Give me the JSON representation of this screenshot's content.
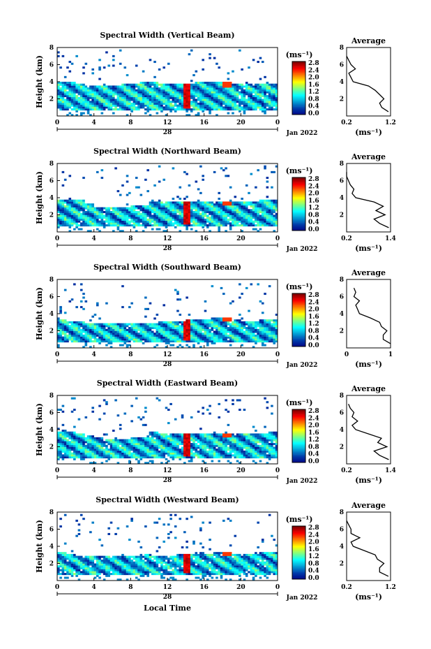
{
  "figure": {
    "date_label": "Jan 2022",
    "x_axis_label": "Local Time",
    "x_ticks": [
      "0",
      "4",
      "8",
      "12",
      "16",
      "20",
      "0"
    ],
    "day_label": "28",
    "colorbar_unit": "(ms⁻¹)",
    "colorbar_ticks": [
      "0.0",
      "0.4",
      "0.8",
      "1.2",
      "1.6",
      "2.0",
      "2.4",
      "2.8"
    ],
    "avg_title": "Average",
    "avg_unit": "(ms⁻¹)",
    "y_label": "Height (km)",
    "y_ticks": [
      "2",
      "4",
      "6",
      "8"
    ]
  },
  "chart_data": [
    {
      "type": "heatmap",
      "title": "Spectral Width (Vertical Beam)",
      "xlabel": "",
      "ylabel": "Height (km)",
      "xlim": [
        0,
        24
      ],
      "ylim": [
        0,
        8
      ],
      "colorbar_range": [
        0.0,
        2.8
      ],
      "layer_top_km": [
        4.0,
        4.0,
        3.8,
        3.6,
        3.5,
        3.5,
        3.6,
        3.7,
        3.8,
        3.9,
        4.0,
        3.8,
        3.8,
        3.8,
        3.8,
        3.9,
        3.9,
        3.9,
        3.9,
        3.8,
        3.8,
        3.8,
        3.8,
        3.8,
        3.8
      ],
      "average_profile": {
        "xlim": [
          0.2,
          1.2
        ],
        "xticks": [
          "0.2",
          "1.2"
        ],
        "ylim": [
          0,
          8
        ],
        "height_km": [
          0.5,
          1.0,
          1.5,
          2.0,
          2.5,
          3.0,
          3.5,
          4.0,
          4.5,
          5.0,
          5.5,
          6.0,
          6.5,
          7.0
        ],
        "width": [
          1.15,
          1.0,
          0.95,
          1.05,
          0.95,
          0.85,
          0.7,
          0.35,
          0.3,
          0.25,
          0.4,
          0.3,
          0.25,
          0.2
        ]
      }
    },
    {
      "type": "heatmap",
      "title": "Spectral Width (Northward Beam)",
      "xlabel": "",
      "ylabel": "Height (km)",
      "xlim": [
        0,
        24
      ],
      "ylim": [
        0,
        8
      ],
      "colorbar_range": [
        0.0,
        2.8
      ],
      "layer_top_km": [
        3.7,
        3.8,
        3.7,
        3.3,
        3.0,
        2.8,
        2.8,
        3.0,
        3.1,
        3.1,
        3.6,
        3.6,
        3.6,
        3.6,
        3.6,
        3.6,
        3.6,
        3.6,
        3.6,
        3.6,
        3.6,
        3.6,
        3.7,
        3.7,
        3.7
      ],
      "average_profile": {
        "xlim": [
          0.2,
          1.4
        ],
        "xticks": [
          "0.2",
          "1.4"
        ],
        "ylim": [
          0,
          8
        ],
        "height_km": [
          0.5,
          1.0,
          1.5,
          2.0,
          2.5,
          3.0,
          3.5,
          4.0,
          4.5,
          5.0,
          5.5,
          6.0,
          6.5,
          7.0
        ],
        "width": [
          1.35,
          1.1,
          0.95,
          1.25,
          1.0,
          1.2,
          0.95,
          0.45,
          0.35,
          0.4,
          0.3,
          0.25,
          0.2,
          0.2
        ]
      }
    },
    {
      "type": "heatmap",
      "title": "Spectral Width (Southward Beam)",
      "xlabel": "",
      "ylabel": "Height (km)",
      "xlim": [
        0,
        24
      ],
      "ylim": [
        0,
        8
      ],
      "colorbar_range": [
        0.0,
        2.8
      ],
      "layer_top_km": [
        3.3,
        3.2,
        3.1,
        3.0,
        2.9,
        2.8,
        2.8,
        2.8,
        2.9,
        2.9,
        3.0,
        3.1,
        3.1,
        3.2,
        3.3,
        3.3,
        3.4,
        3.5,
        3.5,
        3.3,
        3.2,
        3.2,
        3.3,
        3.3,
        3.3
      ],
      "average_profile": {
        "xlim": [
          0,
          1.2
        ],
        "xticks": [
          "0",
          "1"
        ],
        "ylim": [
          0,
          8
        ],
        "height_km": [
          0.5,
          1.0,
          1.5,
          2.0,
          2.5,
          3.0,
          3.5,
          4.0,
          4.5,
          5.0,
          5.5,
          6.0,
          6.5,
          7.0
        ],
        "width": [
          1.2,
          1.0,
          1.0,
          1.1,
          0.95,
          0.9,
          0.65,
          0.35,
          0.3,
          0.25,
          0.35,
          0.2,
          0.25,
          0.2
        ]
      }
    },
    {
      "type": "heatmap",
      "title": "Spectral Width (Eastward Beam)",
      "xlabel": "",
      "ylabel": "Height (km)",
      "xlim": [
        0,
        24
      ],
      "ylim": [
        0,
        8
      ],
      "colorbar_range": [
        0.0,
        2.8
      ],
      "layer_top_km": [
        3.7,
        3.7,
        3.5,
        3.3,
        3.1,
        3.0,
        3.0,
        3.0,
        3.1,
        3.1,
        3.7,
        3.6,
        3.6,
        3.6,
        3.6,
        3.6,
        3.6,
        3.6,
        3.6,
        3.6,
        3.6,
        3.6,
        3.6,
        3.7,
        3.7
      ],
      "average_profile": {
        "xlim": [
          0.2,
          1.4
        ],
        "xticks": [
          "0.2",
          "1.4"
        ],
        "ylim": [
          0,
          8
        ],
        "height_km": [
          0.5,
          1.0,
          1.5,
          2.0,
          2.5,
          3.0,
          3.5,
          4.0,
          4.5,
          5.0,
          5.5,
          6.0,
          6.5,
          7.0
        ],
        "width": [
          1.35,
          1.1,
          0.95,
          1.3,
          1.05,
          1.15,
          0.8,
          0.45,
          0.35,
          0.5,
          0.35,
          0.4,
          0.3,
          0.25
        ]
      }
    },
    {
      "type": "heatmap",
      "title": "Spectral Width (Westward Beam)",
      "xlabel": "Local Time",
      "ylabel": "Height (km)",
      "xlim": [
        0,
        24
      ],
      "ylim": [
        0,
        8
      ],
      "colorbar_range": [
        0.0,
        2.8
      ],
      "layer_top_km": [
        3.3,
        3.2,
        3.0,
        2.9,
        2.9,
        2.9,
        2.9,
        3.0,
        3.0,
        3.1,
        3.0,
        3.0,
        3.0,
        3.1,
        3.1,
        3.2,
        3.2,
        3.3,
        3.3,
        3.2,
        3.2,
        3.2,
        3.3,
        3.3,
        3.3
      ],
      "average_profile": {
        "xlim": [
          0.2,
          1.2
        ],
        "xticks": [
          "0.2",
          "1.2"
        ],
        "ylim": [
          0,
          8
        ],
        "height_km": [
          0.5,
          1.0,
          1.5,
          2.0,
          2.5,
          3.0,
          3.5,
          4.0,
          4.5,
          5.0,
          5.5,
          6.0,
          6.5,
          7.0
        ],
        "width": [
          1.15,
          0.95,
          0.95,
          1.05,
          0.9,
          0.85,
          0.6,
          0.35,
          0.3,
          0.5,
          0.3,
          0.3,
          0.25,
          0.2
        ]
      }
    }
  ]
}
